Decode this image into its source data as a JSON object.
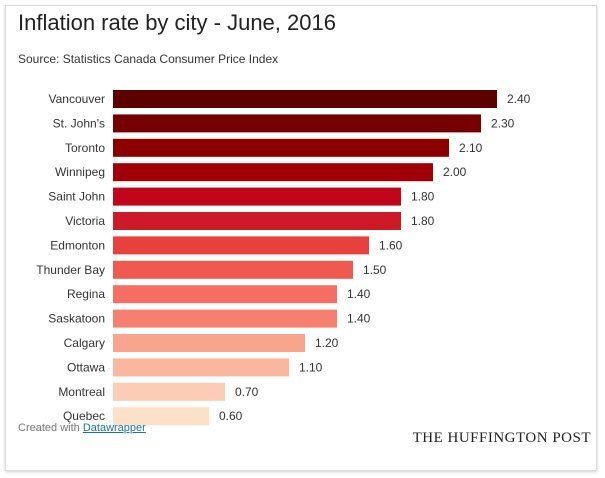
{
  "chart_data": {
    "type": "bar",
    "orientation": "horizontal",
    "title": "Inflation rate by city - June, 2016",
    "subtitle": "Source: Statistics Canada Consumer Price Index",
    "categories": [
      "Vancouver",
      "St. John's",
      "Toronto",
      "Winnipeg",
      "Saint John",
      "Victoria",
      "Edmonton",
      "Thunder Bay",
      "Regina",
      "Saskatoon",
      "Calgary",
      "Ottawa",
      "Montreal",
      "Quebec"
    ],
    "values": [
      2.4,
      2.3,
      2.1,
      2.0,
      1.8,
      1.8,
      1.6,
      1.5,
      1.4,
      1.4,
      1.2,
      1.1,
      0.7,
      0.6
    ],
    "value_labels": [
      "2.40",
      "2.30",
      "2.10",
      "2.00",
      "1.80",
      "1.80",
      "1.60",
      "1.50",
      "1.40",
      "1.40",
      "1.20",
      "1.10",
      "0.70",
      "0.60"
    ],
    "colors": [
      "#5c0000",
      "#760000",
      "#8c0000",
      "#a10008",
      "#c1051a",
      "#cc1a28",
      "#e8403c",
      "#f0594f",
      "#f56e61",
      "#f77f6f",
      "#f9a48d",
      "#fab79d",
      "#fccdb4",
      "#fde0c8"
    ],
    "xlim": [
      0,
      2.4
    ],
    "grid": false,
    "legend": "none"
  },
  "footer": {
    "created_with": "Created with",
    "tool_name": "Datawrapper"
  },
  "brand": "THE HUFFINGTON POST"
}
